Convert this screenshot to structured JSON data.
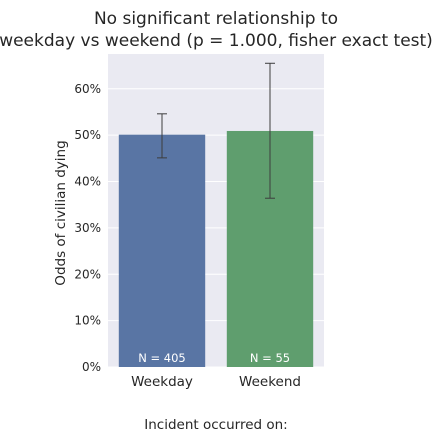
{
  "chart_data": {
    "type": "bar",
    "title_lines": [
      "No significant relationship to",
      "weekday vs weekend (p = 1.000, fisher exact test)"
    ],
    "xlabel": "Incident occurred on:",
    "ylabel": "Odds of civilian dying",
    "categories": [
      "Weekday",
      "Weekend"
    ],
    "values": [
      50.1,
      50.9
    ],
    "error_low": [
      45.1,
      36.4
    ],
    "error_high": [
      54.6,
      65.5
    ],
    "bar_labels": [
      "N = 405",
      "N = 55"
    ],
    "colors": [
      "#5975a4",
      "#5f9e6e"
    ],
    "ylim": [
      0,
      67.5
    ],
    "yticks": [
      0,
      10,
      20,
      30,
      40,
      50,
      60
    ],
    "ytick_labels": [
      "0%",
      "10%",
      "20%",
      "30%",
      "40%",
      "50%",
      "60%"
    ],
    "grid": true,
    "background": "#eaeaf2"
  }
}
